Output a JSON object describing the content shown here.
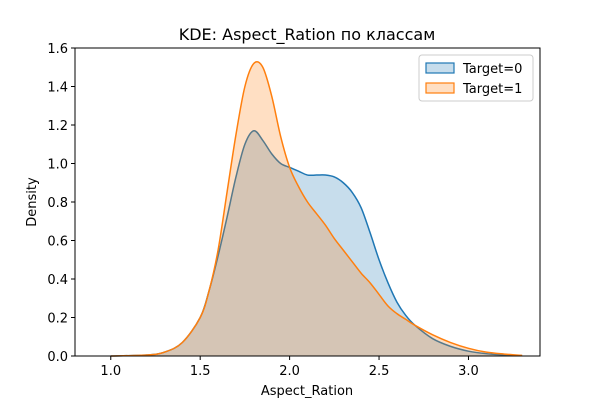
{
  "chart_data": {
    "type": "area",
    "title": "KDE: Aspect_Ration по классам",
    "xlabel": "Aspect_Ration",
    "ylabel": "Density",
    "xlim": [
      0.8,
      3.4
    ],
    "ylim": [
      0,
      1.6
    ],
    "xticks": [
      "1.0",
      "1.5",
      "2.0",
      "2.5",
      "3.0"
    ],
    "xtick_values": [
      1.0,
      1.5,
      2.0,
      2.5,
      3.0
    ],
    "yticks": [
      "0.0",
      "0.2",
      "0.4",
      "0.6",
      "0.8",
      "1.0",
      "1.2",
      "1.4",
      "1.6"
    ],
    "ytick_values": [
      0.0,
      0.2,
      0.4,
      0.6,
      0.8,
      1.0,
      1.2,
      1.4,
      1.6
    ],
    "grid": false,
    "legend_position": "top-right",
    "series": [
      {
        "name": "Target=0",
        "color": "#1f77b4",
        "x": [
          1.0,
          1.2,
          1.3,
          1.4,
          1.5,
          1.55,
          1.6,
          1.65,
          1.7,
          1.75,
          1.8,
          1.85,
          1.9,
          1.95,
          2.0,
          2.05,
          2.1,
          2.15,
          2.2,
          2.25,
          2.3,
          2.35,
          2.4,
          2.45,
          2.5,
          2.55,
          2.6,
          2.65,
          2.7,
          2.8,
          2.9,
          3.0,
          3.1,
          3.2,
          3.3
        ],
        "y": [
          0.0,
          0.005,
          0.02,
          0.07,
          0.2,
          0.34,
          0.52,
          0.72,
          0.93,
          1.1,
          1.17,
          1.12,
          1.05,
          1.0,
          0.98,
          0.96,
          0.94,
          0.94,
          0.94,
          0.93,
          0.9,
          0.85,
          0.77,
          0.64,
          0.5,
          0.38,
          0.28,
          0.21,
          0.16,
          0.09,
          0.05,
          0.025,
          0.012,
          0.005,
          0.002
        ]
      },
      {
        "name": "Target=1",
        "color": "#ff7f0e",
        "x": [
          1.0,
          1.2,
          1.3,
          1.4,
          1.5,
          1.55,
          1.6,
          1.65,
          1.7,
          1.75,
          1.8,
          1.85,
          1.9,
          1.95,
          2.0,
          2.05,
          2.1,
          2.15,
          2.2,
          2.25,
          2.3,
          2.35,
          2.4,
          2.45,
          2.5,
          2.55,
          2.6,
          2.65,
          2.7,
          2.8,
          2.9,
          3.0,
          3.1,
          3.2,
          3.3
        ],
        "y": [
          0.0,
          0.005,
          0.02,
          0.07,
          0.2,
          0.34,
          0.55,
          0.85,
          1.15,
          1.4,
          1.52,
          1.5,
          1.35,
          1.14,
          0.98,
          0.88,
          0.8,
          0.74,
          0.68,
          0.61,
          0.55,
          0.49,
          0.43,
          0.38,
          0.32,
          0.26,
          0.22,
          0.19,
          0.16,
          0.11,
          0.07,
          0.04,
          0.02,
          0.01,
          0.003
        ]
      }
    ]
  }
}
